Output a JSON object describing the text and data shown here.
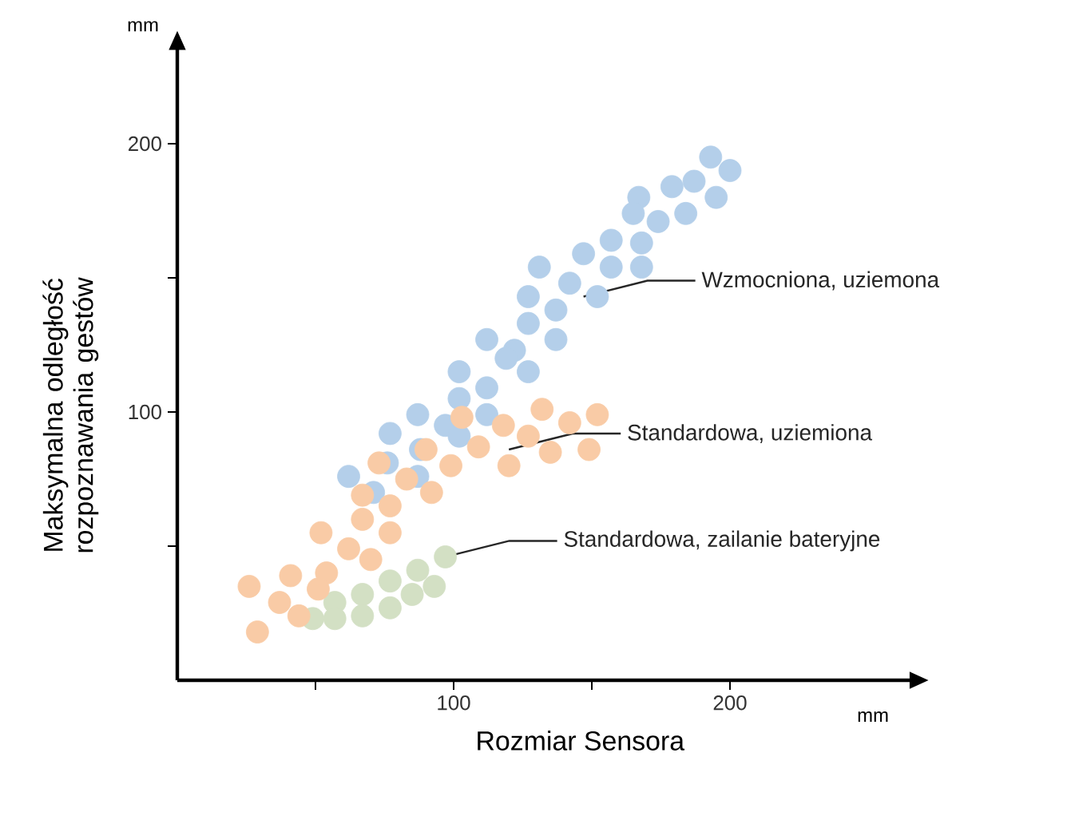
{
  "chart_data": {
    "type": "scatter",
    "xlabel": "Rozmiar Sensora",
    "ylabel": "Maksymalna odległość rozpoznawania gestów",
    "xlim": [
      0,
      265
    ],
    "ylim": [
      0,
      235
    ],
    "xticks": [
      {
        "value": 50,
        "label": null
      },
      100,
      {
        "value": 150,
        "label": null
      },
      200
    ],
    "yticks": [
      {
        "value": 50,
        "label": null
      },
      100,
      {
        "value": 150,
        "label": null
      },
      200
    ],
    "grid": false,
    "series": [
      {
        "color": "#f9cba6",
        "x": [
          132,
          152,
          142,
          118,
          127,
          149,
          135,
          109,
          120,
          99,
          103,
          90,
          73,
          83,
          92,
          67,
          77,
          67,
          52,
          77,
          62,
          70,
          41,
          54,
          51,
          26,
          37,
          44,
          29
        ],
        "values": [
          101,
          99,
          96,
          95,
          91,
          86,
          85,
          87,
          80,
          80,
          98,
          86,
          81,
          75,
          70,
          69,
          65,
          60,
          55,
          55,
          49,
          45,
          39,
          40,
          34,
          35,
          29,
          24,
          18
        ]
      },
      {
        "color": "#d3e0c4",
        "x": [
          97,
          87,
          77,
          67,
          57,
          93,
          85,
          77,
          67,
          57,
          49
        ],
        "values": [
          46,
          41,
          37,
          32,
          29,
          35,
          32,
          27,
          24,
          23,
          23
        ]
      },
      {
        "color": "#b4cfea",
        "x": [
          193,
          200,
          187,
          179,
          167,
          165,
          174,
          184,
          195,
          157,
          168,
          147,
          157,
          168,
          131,
          142,
          152,
          127,
          137,
          127,
          137,
          112,
          122,
          119,
          127,
          102,
          102,
          112,
          112,
          87,
          97,
          77,
          88,
          102,
          62,
          71,
          76,
          87
        ],
        "values": [
          195,
          190,
          186,
          184,
          180,
          174,
          171,
          174,
          180,
          164,
          163,
          159,
          154,
          154,
          154,
          148,
          143,
          143,
          138,
          133,
          127,
          127,
          123,
          120,
          115,
          115,
          105,
          109,
          99,
          99,
          95,
          92,
          86,
          91,
          76,
          70,
          81,
          76
        ]
      }
    ],
    "annotations": [
      "mm",
      "mm",
      {
        "text": "Wzmocniona, uziemona",
        "x": 147,
        "y": 143
      },
      {
        "text": "Standardowa, uziemiona",
        "x": 120,
        "y": 86
      },
      {
        "text": "Standardowa, zailanie bateryjne",
        "x": 97,
        "y": 46
      }
    ]
  }
}
